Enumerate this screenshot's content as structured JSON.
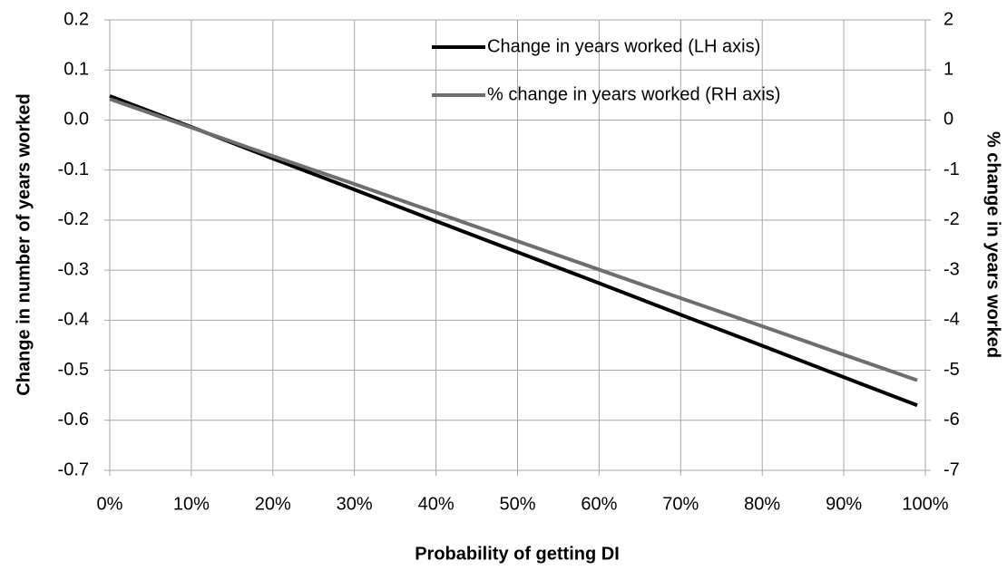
{
  "chart_data": {
    "type": "line",
    "x_label": "Probability of getting DI",
    "y_label": "Change in number of years worked",
    "y2_label": "% change in years worked",
    "x": [
      0,
      10,
      20,
      30,
      40,
      50,
      60,
      70,
      80,
      90,
      99
    ],
    "series": [
      {
        "name": "Change in years worked (LH axis)",
        "color": "#000000",
        "axis": "y",
        "values": [
          0.048,
          -0.014,
          -0.077,
          -0.139,
          -0.202,
          -0.264,
          -0.326,
          -0.389,
          -0.451,
          -0.514,
          -0.57
        ]
      },
      {
        "name": "% change in years worked (RH axis)",
        "color": "#6e6e6e",
        "axis": "y2",
        "values": [
          0.42,
          -0.15,
          -0.72,
          -1.28,
          -1.85,
          -2.42,
          -2.99,
          -3.56,
          -4.12,
          -4.69,
          -5.2
        ]
      }
    ],
    "xlim": [
      0,
      100
    ],
    "xticks": [
      {
        "value": 0,
        "label": "0%"
      },
      {
        "value": 10,
        "label": "10%"
      },
      {
        "value": 20,
        "label": "20%"
      },
      {
        "value": 30,
        "label": "30%"
      },
      {
        "value": 40,
        "label": "40%"
      },
      {
        "value": 50,
        "label": "50%"
      },
      {
        "value": 60,
        "label": "60%"
      },
      {
        "value": 70,
        "label": "70%"
      },
      {
        "value": 80,
        "label": "80%"
      },
      {
        "value": 90,
        "label": "90%"
      },
      {
        "value": 100,
        "label": "100%"
      }
    ],
    "ylim": [
      -0.7,
      0.2
    ],
    "yticks": [
      0.2,
      0.1,
      {
        "value": 0,
        "label": "0.0"
      },
      -0.1,
      -0.2,
      -0.3,
      -0.4,
      -0.5,
      -0.6,
      -0.7
    ],
    "y2lim": [
      -7,
      2
    ],
    "y2ticks": [
      2,
      1,
      0,
      -1,
      -2,
      -3,
      -4,
      -5,
      -6,
      -7
    ],
    "grid": true,
    "legend": "upper right"
  }
}
